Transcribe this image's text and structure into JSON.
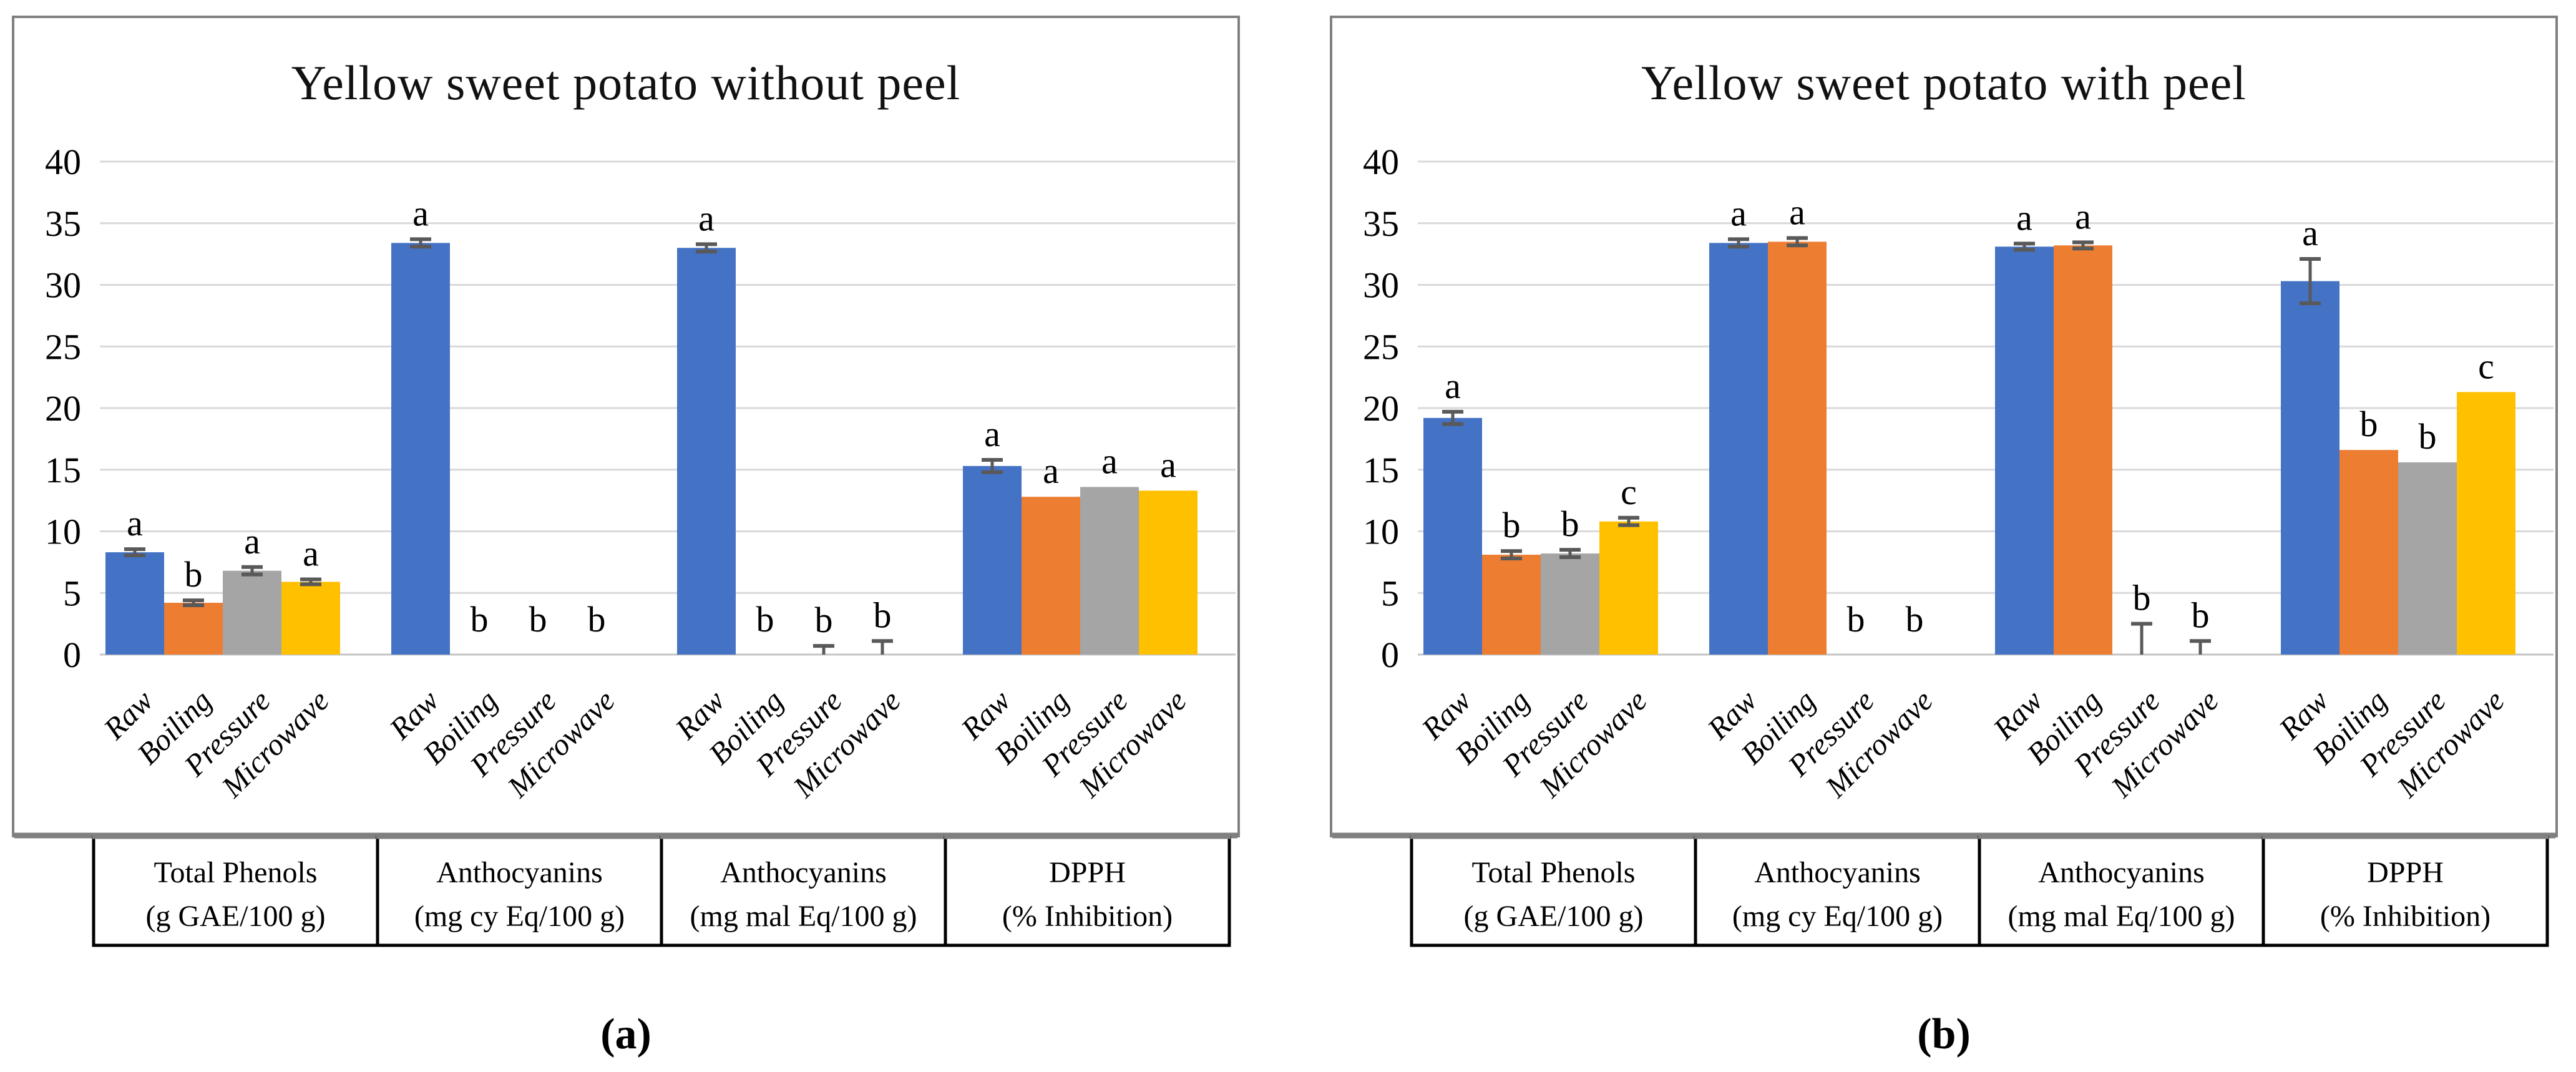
{
  "figure": {
    "caption_a": "(a)",
    "caption_b": "(b)"
  },
  "colors": {
    "bar_blue": "#4472C4",
    "bar_orange": "#ED7D31",
    "bar_gray": "#A5A5A5",
    "bar_yellow": "#FFC000",
    "error_bar": "#595959",
    "gridline": "#D9D9D9",
    "axis_line": "#C6C6C6",
    "panel_border": "#808080",
    "box_border": "#000000",
    "box_top_band": "#808080",
    "text": "#000000"
  },
  "chart_data": [
    {
      "type": "bar",
      "panel": "a",
      "title": "Yellow sweet potato without peel",
      "panel_caption": "(a)",
      "ylabel": "",
      "xlabel": "",
      "ylim": [
        0,
        40
      ],
      "ytick_step": 5,
      "yticks": [
        0,
        5,
        10,
        15,
        20,
        25,
        30,
        35,
        40
      ],
      "grid": true,
      "legend": "none",
      "series_labels": [
        "Raw",
        "Boiling",
        "Pressure",
        "Microwave"
      ],
      "groups": [
        {
          "label_line1": "Total Phenols",
          "label_line2": "(g GAE/100 g)",
          "values": [
            8.3,
            4.2,
            6.8,
            5.9
          ],
          "errors": [
            0.25,
            0.2,
            0.3,
            0.2
          ],
          "letters": [
            "a",
            "b",
            "a",
            "a"
          ]
        },
        {
          "label_line1": "Anthocyanins",
          "label_line2": "(mg cy Eq/100 g)",
          "values": [
            33.4,
            0,
            0,
            0
          ],
          "errors": [
            0.3,
            0,
            0,
            0
          ],
          "letters": [
            "a",
            "b",
            "b",
            "b"
          ]
        },
        {
          "label_line1": "Anthocyanins",
          "label_line2": "(mg mal Eq/100 g)",
          "values": [
            33.0,
            0,
            0,
            0
          ],
          "errors": [
            0.3,
            0,
            0.7,
            1.1
          ],
          "letters": [
            "a",
            "b",
            "b",
            "b"
          ]
        },
        {
          "label_line1": "DPPH",
          "label_line2": "(% Inhibition)",
          "values": [
            15.3,
            12.8,
            13.6,
            13.3
          ],
          "errors": [
            0.5,
            0,
            0,
            0
          ],
          "letters": [
            "a",
            "a",
            "a",
            "a"
          ]
        }
      ]
    },
    {
      "type": "bar",
      "panel": "b",
      "title": "Yellow sweet potato with peel",
      "panel_caption": "(b)",
      "ylabel": "",
      "xlabel": "",
      "ylim": [
        0,
        40
      ],
      "ytick_step": 5,
      "yticks": [
        0,
        5,
        10,
        15,
        20,
        25,
        30,
        35,
        40
      ],
      "grid": true,
      "legend": "none",
      "series_labels": [
        "Raw",
        "Boiling",
        "Pressure",
        "Microwave"
      ],
      "groups": [
        {
          "label_line1": "Total Phenols",
          "label_line2": "(g GAE/100 g)",
          "values": [
            19.2,
            8.1,
            8.2,
            10.8
          ],
          "errors": [
            0.5,
            0.3,
            0.3,
            0.3
          ],
          "letters": [
            "a",
            "b",
            "b",
            "c"
          ]
        },
        {
          "label_line1": "Anthocyanins",
          "label_line2": "(mg cy Eq/100 g)",
          "values": [
            33.4,
            33.5,
            0,
            0
          ],
          "errors": [
            0.3,
            0.3,
            0,
            0
          ],
          "letters": [
            "a",
            "a",
            "b",
            "b"
          ]
        },
        {
          "label_line1": "Anthocyanins",
          "label_line2": "(mg mal Eq/100 g)",
          "values": [
            33.1,
            33.2,
            0,
            0
          ],
          "errors": [
            0.25,
            0.25,
            2.5,
            1.1
          ],
          "letters": [
            "a",
            "a",
            "b",
            "b"
          ]
        },
        {
          "label_line1": "DPPH",
          "label_line2": "(% Inhibition)",
          "values": [
            30.3,
            16.6,
            15.6,
            21.3
          ],
          "errors": [
            1.8,
            0,
            0,
            0
          ],
          "letters": [
            "a",
            "b",
            "b",
            "c"
          ]
        }
      ]
    }
  ]
}
